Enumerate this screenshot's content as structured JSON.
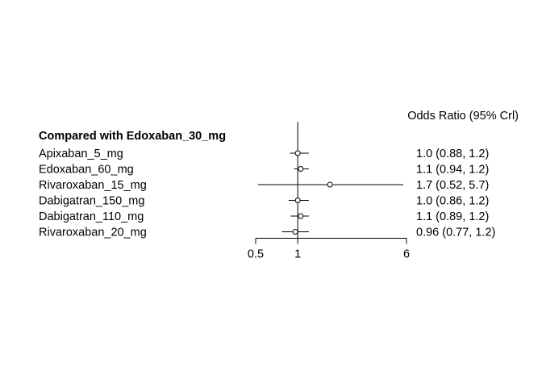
{
  "chart_data": {
    "type": "forest",
    "scale": "log",
    "column_header": "Odds Ratio (95% Crl)",
    "group_title": "Compared with Edoxaban_30_mg",
    "reference_value": 1,
    "xlim": [
      0.5,
      6
    ],
    "x_ticks": [
      {
        "value": 0.5,
        "label": "0.5"
      },
      {
        "value": 1,
        "label": "1"
      },
      {
        "value": 6,
        "label": "6"
      }
    ],
    "rows": [
      {
        "label": "Apixaban_5_mg",
        "estimate": 1.0,
        "lower": 0.88,
        "upper": 1.2,
        "text": "1.0 (0.88, 1.2)"
      },
      {
        "label": "Edoxaban_60_mg",
        "estimate": 1.05,
        "lower": 0.94,
        "upper": 1.2,
        "text": "1.1 (0.94, 1.2)"
      },
      {
        "label": "Rivaroxaban_15_mg",
        "estimate": 1.7,
        "lower": 0.52,
        "upper": 5.7,
        "text": "1.7 (0.52, 5.7)"
      },
      {
        "label": "Dabigatran_150_mg",
        "estimate": 1.0,
        "lower": 0.86,
        "upper": 1.2,
        "text": "1.0 (0.86, 1.2)"
      },
      {
        "label": "Dabigatran_110_mg",
        "estimate": 1.05,
        "lower": 0.89,
        "upper": 1.2,
        "text": "1.1 (0.89, 1.2)"
      },
      {
        "label": "Rivaroxaban_20_mg",
        "estimate": 0.96,
        "lower": 0.77,
        "upper": 1.2,
        "text": "0.96 (0.77, 1.2)"
      }
    ]
  }
}
